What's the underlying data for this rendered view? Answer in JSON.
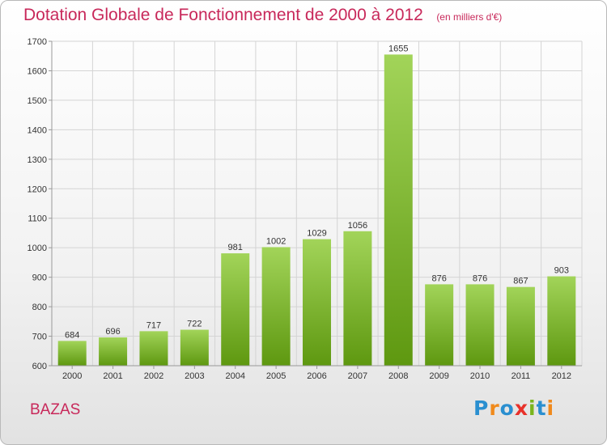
{
  "title": "Dotation Globale de Fonctionnement de 2000 à 2012",
  "subtitle": "(en milliers d'€)",
  "commune": "BAZAS",
  "logo": {
    "text": "Proxiti",
    "letters": [
      {
        "char": "P",
        "color": "#2a8fd0"
      },
      {
        "char": "r",
        "color": "#f08a1c"
      },
      {
        "char": "o",
        "color": "#2a8fd0"
      },
      {
        "char": "x",
        "color": "#e8312a"
      },
      {
        "char": "i",
        "color": "#7ab51d"
      },
      {
        "char": "t",
        "color": "#2a8fd0"
      },
      {
        "char": "i",
        "color": "#f08a1c"
      }
    ]
  },
  "colors": {
    "title": "#c8285a",
    "bar_top": "#a2d459",
    "bar_bottom": "#5e9810",
    "grid": "#d4d4d4"
  },
  "chart_data": {
    "type": "bar",
    "categories": [
      "2000",
      "2001",
      "2002",
      "2003",
      "2004",
      "2005",
      "2006",
      "2007",
      "2008",
      "2009",
      "2010",
      "2011",
      "2012"
    ],
    "values": [
      684,
      696,
      717,
      722,
      981,
      1002,
      1029,
      1056,
      1655,
      876,
      876,
      867,
      903
    ],
    "ylim": [
      600,
      1700
    ],
    "yticks": [
      600,
      700,
      800,
      900,
      1000,
      1100,
      1200,
      1300,
      1400,
      1500,
      1600,
      1700
    ],
    "grid": true,
    "data_labels": true
  }
}
